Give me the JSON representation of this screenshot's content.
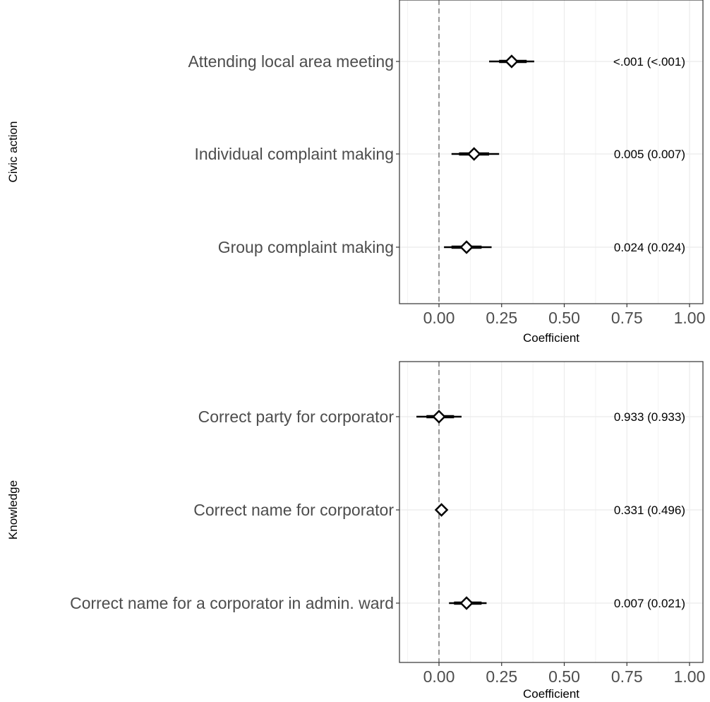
{
  "chart_data": [
    {
      "type": "forest",
      "group_label": "Civic action",
      "xlabel": "Coefficient",
      "xlim": [
        -0.15,
        1.0
      ],
      "x_ticks": [
        0,
        0.25,
        0.5,
        0.75,
        1.0
      ],
      "x_tick_labels": [
        "0.00",
        "0.25",
        "0.50",
        "0.75",
        "1.00"
      ],
      "reference_line": 0,
      "grid": true,
      "rows": [
        {
          "label": "Attending local area meeting",
          "estimate": 0.29,
          "ci_low": 0.2,
          "ci_high": 0.38,
          "ci_inner_low": 0.24,
          "ci_inner_high": 0.35,
          "annotation": "<.001 (<.001)"
        },
        {
          "label": "Individual complaint making",
          "estimate": 0.14,
          "ci_low": 0.05,
          "ci_high": 0.24,
          "ci_inner_low": 0.08,
          "ci_inner_high": 0.2,
          "annotation": "0.005 (0.007)"
        },
        {
          "label": "Group complaint making",
          "estimate": 0.11,
          "ci_low": 0.02,
          "ci_high": 0.21,
          "ci_inner_low": 0.05,
          "ci_inner_high": 0.17,
          "annotation": "0.024 (0.024)"
        }
      ]
    },
    {
      "type": "forest",
      "group_label": "Knowledge",
      "xlabel": "Coefficient",
      "xlim": [
        -0.15,
        1.0
      ],
      "x_ticks": [
        0,
        0.25,
        0.5,
        0.75,
        1.0
      ],
      "x_tick_labels": [
        "0.00",
        "0.25",
        "0.50",
        "0.75",
        "1.00"
      ],
      "reference_line": 0,
      "grid": true,
      "rows": [
        {
          "label": "Correct party for corporator",
          "estimate": 0.0,
          "ci_low": -0.09,
          "ci_high": 0.09,
          "ci_inner_low": -0.05,
          "ci_inner_high": 0.06,
          "annotation": "0.933 (0.933)"
        },
        {
          "label": "Correct name for corporator",
          "estimate": 0.01,
          "ci_low": -0.01,
          "ci_high": 0.03,
          "ci_inner_low": 0.0,
          "ci_inner_high": 0.02,
          "annotation": "0.331 (0.496)"
        },
        {
          "label": "Correct name for a corporator in admin. ward",
          "estimate": 0.11,
          "ci_low": 0.04,
          "ci_high": 0.19,
          "ci_inner_low": 0.06,
          "ci_inner_high": 0.17,
          "annotation": "0.007 (0.021)"
        }
      ]
    }
  ]
}
